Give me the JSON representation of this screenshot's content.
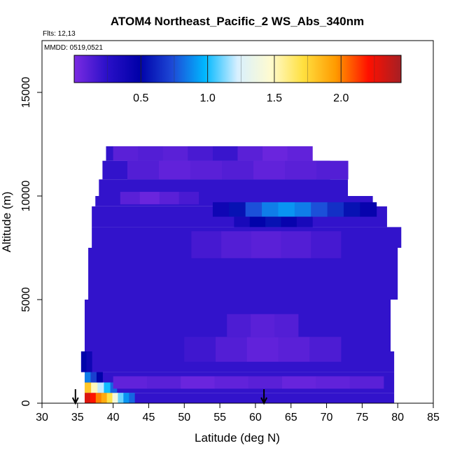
{
  "chart_data": {
    "type": "heatmap",
    "title": "ATOM4 Northeast_Pacific_2 WS_Abs_340nm",
    "flights_note": "Flts: 12,13",
    "dates_note": "MMDD: 0519,0521",
    "xlabel": "Latitude (deg N)",
    "ylabel": "Altitude (m)",
    "xlim": [
      30,
      85
    ],
    "ylim": [
      0,
      17500
    ],
    "x_ticks": [
      "30",
      "35",
      "40",
      "45",
      "50",
      "55",
      "60",
      "65",
      "70",
      "75",
      "80",
      "85"
    ],
    "y_ticks": [
      "0",
      "5000",
      "10000",
      "15000"
    ],
    "colorbar": {
      "range": [
        0.0,
        2.45
      ],
      "tick_labels": [
        "0.5",
        "1.0",
        "1.5",
        "2.0"
      ],
      "tick_values": [
        0.5,
        1.0,
        1.5,
        2.0
      ],
      "colors": [
        "#7b2be2",
        "#2a10c8",
        "#0000a8",
        "#1d49d6",
        "#00b8ff",
        "#d8f0ff",
        "#fffbd0",
        "#ffe040",
        "#ff9a00",
        "#ff1000",
        "#a51f24"
      ]
    },
    "flight_markers_latitude": [
      34.7,
      61.2
    ],
    "background_value": 0.22,
    "envelope": [
      {
        "lat_min": 36.0,
        "lat_max": 79.5,
        "alt_min": 0,
        "alt_max": 500
      },
      {
        "lat_min": 36.0,
        "lat_max": 79.5,
        "alt_min": 500,
        "alt_max": 1500
      },
      {
        "lat_min": 35.5,
        "lat_max": 79.5,
        "alt_min": 1500,
        "alt_max": 2500
      },
      {
        "lat_min": 36.0,
        "lat_max": 79.0,
        "alt_min": 2500,
        "alt_max": 5000
      },
      {
        "lat_min": 36.5,
        "lat_max": 80.0,
        "alt_min": 5000,
        "alt_max": 7500
      },
      {
        "lat_min": 37.0,
        "lat_max": 80.5,
        "alt_min": 7500,
        "alt_max": 8500
      },
      {
        "lat_min": 37.0,
        "lat_max": 78.5,
        "alt_min": 8500,
        "alt_max": 9500
      },
      {
        "lat_min": 37.5,
        "lat_max": 76.5,
        "alt_min": 9500,
        "alt_max": 10000
      },
      {
        "lat_min": 38.0,
        "lat_max": 73.0,
        "alt_min": 10000,
        "alt_max": 10800
      },
      {
        "lat_min": 38.5,
        "lat_max": 70.5,
        "alt_min": 10800,
        "alt_max": 11700
      },
      {
        "lat_min": 39.0,
        "lat_max": 68.0,
        "alt_min": 11700,
        "alt_max": 12400
      }
    ],
    "features": [
      {
        "lat_min": 36.0,
        "lat_max": 43.0,
        "alt_min": 0,
        "alt_max": 500,
        "values": [
          2.3,
          2.2,
          2.0,
          1.9,
          1.7,
          1.4,
          1.1,
          0.9,
          0.8
        ]
      },
      {
        "lat_min": 36.0,
        "lat_max": 40.5,
        "alt_min": 500,
        "alt_max": 1000,
        "values": [
          1.8,
          1.5,
          1.2,
          1.0,
          0.8
        ]
      },
      {
        "lat_min": 36.0,
        "lat_max": 38.5,
        "alt_min": 1000,
        "alt_max": 1500,
        "values": [
          0.85,
          0.7,
          0.5
        ]
      },
      {
        "lat_min": 35.5,
        "lat_max": 37.0,
        "alt_min": 1500,
        "alt_max": 2500,
        "values": [
          0.5,
          0.4
        ]
      },
      {
        "lat_min": 54.0,
        "lat_max": 77.0,
        "alt_min": 9000,
        "alt_max": 9700,
        "values": [
          0.4,
          0.55,
          0.75,
          0.85,
          0.9,
          0.85,
          0.75,
          0.65,
          0.55,
          0.45
        ]
      },
      {
        "lat_min": 57.0,
        "lat_max": 68.0,
        "alt_min": 8500,
        "alt_max": 9000,
        "values": [
          0.35,
          0.5,
          0.55,
          0.45,
          0.35
        ]
      },
      {
        "lat_min": 40.0,
        "lat_max": 68.0,
        "alt_min": 11700,
        "alt_max": 12400,
        "values": [
          0.1,
          0.12,
          0.1,
          0.15,
          0.2,
          0.1,
          0.05,
          0.08
        ]
      },
      {
        "lat_min": 42.0,
        "lat_max": 73.0,
        "alt_min": 10800,
        "alt_max": 11700,
        "values": [
          0.12,
          0.08,
          0.1,
          0.12,
          0.08,
          0.1,
          0.12
        ]
      },
      {
        "lat_min": 41.0,
        "lat_max": 52.0,
        "alt_min": 9600,
        "alt_max": 10200,
        "values": [
          0.1,
          0.05,
          0.1,
          0.15
        ]
      },
      {
        "lat_min": 40.0,
        "lat_max": 78.0,
        "alt_min": 700,
        "alt_max": 1300,
        "values": [
          0.08,
          0.1,
          0.05,
          0.08,
          0.1,
          0.06,
          0.08,
          0.1
        ]
      },
      {
        "lat_min": 50.0,
        "lat_max": 72.0,
        "alt_min": 2000,
        "alt_max": 3200,
        "values": [
          0.18,
          0.12,
          0.08,
          0.1,
          0.14
        ]
      },
      {
        "lat_min": 56.0,
        "lat_max": 66.0,
        "alt_min": 3200,
        "alt_max": 4300,
        "values": [
          0.14,
          0.1,
          0.12
        ]
      },
      {
        "lat_min": 51.0,
        "lat_max": 72.0,
        "alt_min": 7000,
        "alt_max": 8300,
        "values": [
          0.16,
          0.12,
          0.1,
          0.12,
          0.16
        ]
      }
    ]
  }
}
